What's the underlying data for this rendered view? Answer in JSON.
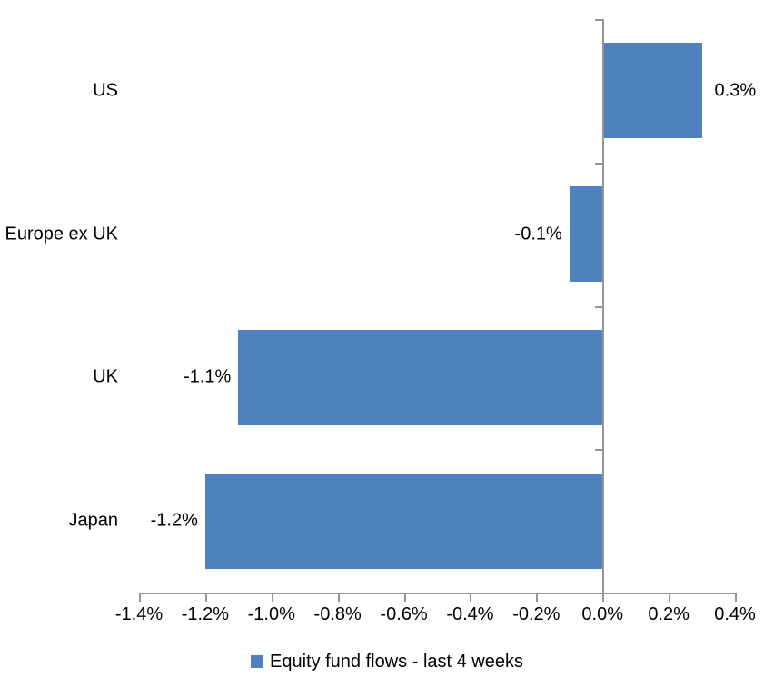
{
  "chart_data": {
    "type": "bar",
    "orientation": "horizontal",
    "categories": [
      "US",
      "Europe ex UK",
      "UK",
      "Japan"
    ],
    "values": [
      0.3,
      -0.1,
      -1.1,
      -1.2
    ],
    "data_labels": [
      "0.3%",
      "-0.1%",
      "-1.1%",
      "-1.2%"
    ],
    "xlim": [
      -1.4,
      0.4
    ],
    "x_ticks": [
      -1.4,
      -1.2,
      -1.0,
      -0.8,
      -0.6,
      -0.4,
      -0.2,
      0.0,
      0.2,
      0.4
    ],
    "x_tick_labels": [
      "-1.4%",
      "-1.2%",
      "-1.0%",
      "-0.8%",
      "-0.6%",
      "-0.4%",
      "-0.2%",
      "0.0%",
      "0.2%",
      "0.4%"
    ],
    "grid": false,
    "legend_position": "bottom",
    "legend_label": "Equity fund flows - last 4 weeks",
    "colors": {
      "bar": "#4F81BD",
      "axis": "#969696",
      "text": "#000000",
      "background": "#FFFFFF"
    }
  }
}
